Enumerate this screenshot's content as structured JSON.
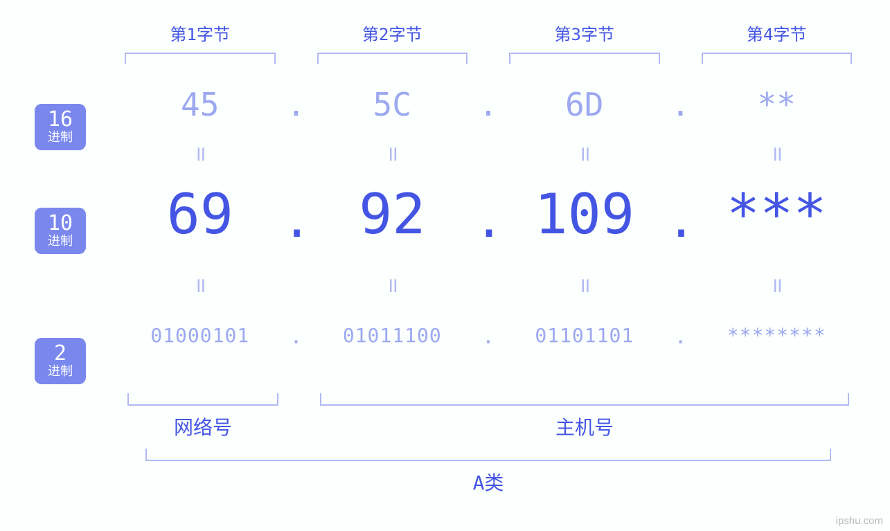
{
  "type": "infographic",
  "subject": "ip-address-bytes-bases",
  "colors": {
    "background": "#fbfffd",
    "accent_strong": "#4455e4",
    "accent": "#5e6ee8",
    "accent_light": "#9ca8f0",
    "accent_xlight": "#b0b9f2",
    "badge_bg": "#7a88ee",
    "badge_fg": "#ffffff"
  },
  "typography": {
    "family": "monospace",
    "byte_label_fontsize": 24,
    "hex_fontsize": 46,
    "dec_fontsize": 80,
    "bin_fontsize": 28,
    "eq_glyph": "॥",
    "badge_num_fontsize": 30,
    "badge_label_fontsize": 18,
    "bottom_label_fontsize": 28
  },
  "bases": {
    "hex": {
      "num": "16",
      "label": "进制"
    },
    "dec": {
      "num": "10",
      "label": "进制"
    },
    "bin": {
      "num": "2",
      "label": "进制"
    }
  },
  "byte_labels": [
    "第1字节",
    "第2字节",
    "第3字节",
    "第4字节"
  ],
  "separator": ".",
  "equals_glyph": "॥",
  "bytes": [
    {
      "hex": "45",
      "dec": "69",
      "bin": "01000101"
    },
    {
      "hex": "5C",
      "dec": "92",
      "bin": "01011100"
    },
    {
      "hex": "6D",
      "dec": "109",
      "bin": "01101101"
    },
    {
      "hex": "**",
      "dec": "***",
      "bin": "********"
    }
  ],
  "bottom": {
    "network_label": "网络号",
    "host_label": "主机号",
    "class_label": "A类",
    "network_byte_span": [
      1,
      1
    ],
    "host_byte_span": [
      2,
      4
    ],
    "class_byte_span": [
      1,
      4
    ]
  },
  "watermark": "ipshu.com"
}
